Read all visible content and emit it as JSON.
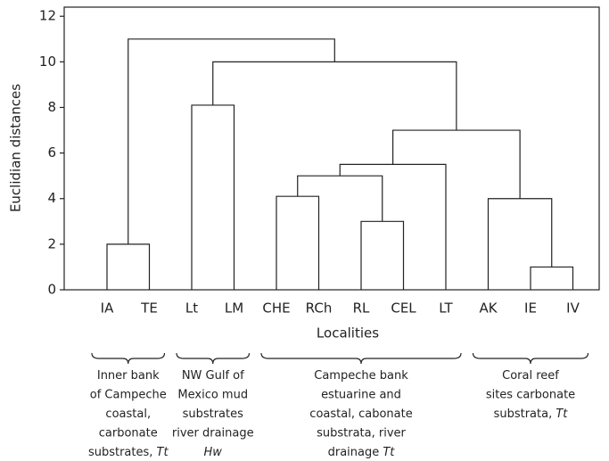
{
  "chart_data": {
    "type": "dendrogram",
    "xlabel": "Localities",
    "ylabel": "Euclidian distances",
    "categories": [
      "IA",
      "TE",
      "Lt",
      "LM",
      "CHE",
      "RCh",
      "RL",
      "CEL",
      "LT",
      "AK",
      "IE",
      "IV"
    ],
    "links": [
      {
        "children": [
          0,
          1
        ],
        "height": 2.0
      },
      {
        "children": [
          2,
          3
        ],
        "height": 8.1
      },
      {
        "children": [
          4,
          5
        ],
        "height": 4.1
      },
      {
        "children": [
          6,
          7
        ],
        "height": 3.0
      },
      {
        "children": [
          10,
          11
        ],
        "height": 1.0
      },
      {
        "children": [
          14,
          15
        ],
        "height": 5.0
      },
      {
        "children": [
          17,
          8
        ],
        "height": 5.5
      },
      {
        "children": [
          9,
          16
        ],
        "height": 4.0
      },
      {
        "children": [
          18,
          19
        ],
        "height": 7.0
      },
      {
        "children": [
          13,
          20
        ],
        "height": 10.0
      },
      {
        "children": [
          12,
          21
        ],
        "height": 11.0
      }
    ],
    "ylim": [
      0,
      12.4
    ],
    "yticks": [
      0,
      2,
      4,
      6,
      8,
      10,
      12
    ],
    "color": "#000000",
    "groups": [
      {
        "from": 0,
        "to": 1,
        "lines": [
          [
            "Inner bank"
          ],
          [
            "of Campeche"
          ],
          [
            "coastal,"
          ],
          [
            "carbonate"
          ],
          [
            "substrates, ",
            "Tt"
          ]
        ]
      },
      {
        "from": 2,
        "to": 3,
        "lines": [
          [
            "NW Gulf of"
          ],
          [
            "Mexico mud"
          ],
          [
            "substrates"
          ],
          [
            "river drainage"
          ],
          [
            "",
            "Hw"
          ]
        ]
      },
      {
        "from": 4,
        "to": 8,
        "lines": [
          [
            "Campeche bank"
          ],
          [
            "estuarine and"
          ],
          [
            "coastal, cabonate"
          ],
          [
            "substrata, river"
          ],
          [
            "drainage ",
            "Tt"
          ]
        ]
      },
      {
        "from": 9,
        "to": 11,
        "lines": [
          [
            "Coral reef"
          ],
          [
            "sites carbonate"
          ],
          [
            "substrata, ",
            "Tt"
          ]
        ]
      }
    ]
  }
}
